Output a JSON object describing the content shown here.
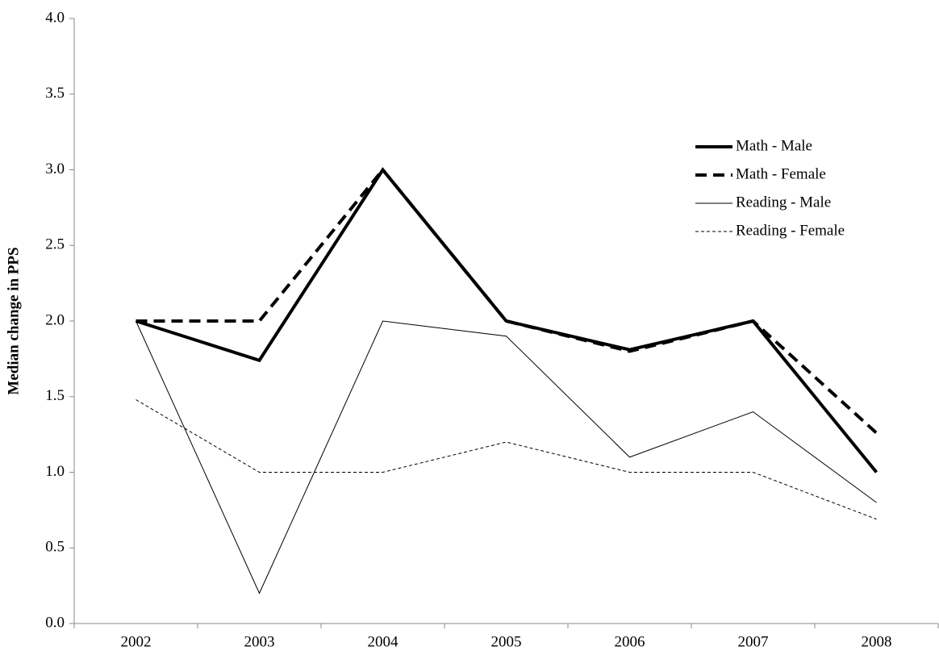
{
  "chart_data": {
    "type": "line",
    "y_label": "Median change in PPS",
    "categories": [
      "2002",
      "2003",
      "2004",
      "2005",
      "2006",
      "2007",
      "2008"
    ],
    "series": [
      {
        "name": "Math - Male",
        "color": "#000000",
        "width": 4,
        "dash": "solid",
        "values": [
          2.0,
          1.74,
          3.0,
          2.0,
          1.81,
          2.0,
          1.0
        ]
      },
      {
        "name": "Math - Female",
        "color": "#000000",
        "width": 4,
        "dash": "dashed",
        "values": [
          2.0,
          2.0,
          3.0,
          2.0,
          1.8,
          2.0,
          1.26
        ]
      },
      {
        "name": "Reading - Male",
        "color": "#000000",
        "width": 1,
        "dash": "solid",
        "values": [
          2.0,
          0.2,
          2.0,
          1.9,
          1.1,
          1.4,
          0.8
        ]
      },
      {
        "name": "Reading - Female",
        "color": "#000000",
        "width": 1,
        "dash": "dotted",
        "values": [
          1.48,
          1.0,
          1.0,
          1.2,
          1.0,
          1.0,
          0.69
        ]
      }
    ],
    "ylim": [
      0,
      4
    ],
    "yticks": [
      {
        "value": 0,
        "label": "0.0"
      },
      {
        "value": 0.5,
        "label": "0.5"
      },
      {
        "value": 1,
        "label": "1.0"
      },
      {
        "value": 1.5,
        "label": "1.5"
      },
      {
        "value": 2,
        "label": "2.0"
      },
      {
        "value": 2.5,
        "label": "2.5"
      },
      {
        "value": 3,
        "label": "3.0"
      },
      {
        "value": 3.5,
        "label": "3.5"
      },
      {
        "value": 4,
        "label": "4.0"
      }
    ],
    "grid": false,
    "legend": "upper right"
  }
}
